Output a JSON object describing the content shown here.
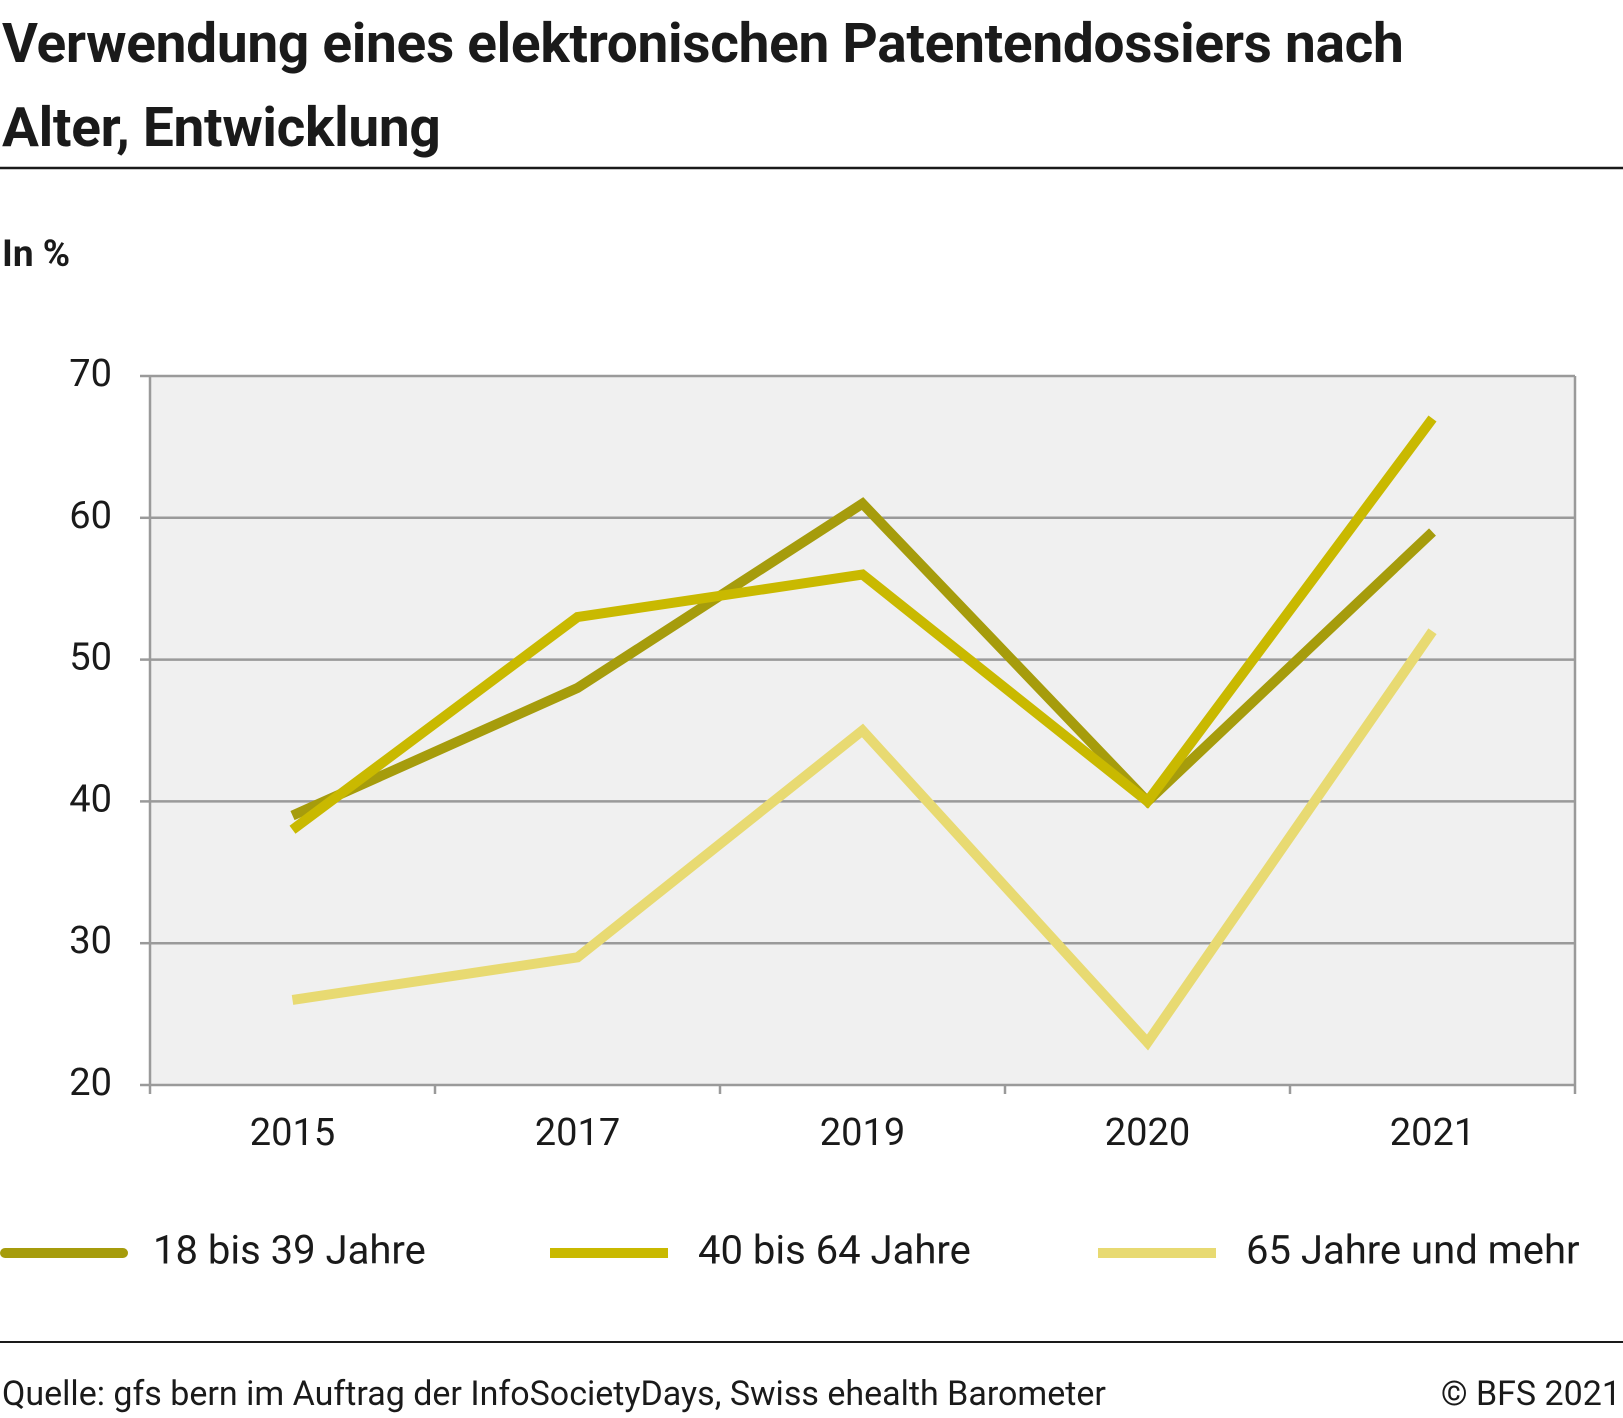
{
  "chart_data": {
    "type": "line",
    "title": "Verwendung eines elektronischen Patentendossiers nach Alter, Entwicklung",
    "y_label": "In %",
    "categories": [
      "2015",
      "2017",
      "2019",
      "2020",
      "2021"
    ],
    "series": [
      {
        "name": "18 bis 39 Jahre",
        "color": "#a69c0c",
        "values": [
          39,
          48,
          61,
          40,
          59
        ]
      },
      {
        "name": "40 bis 64 Jahre",
        "color": "#c9b900",
        "values": [
          38,
          53,
          56,
          40,
          67
        ]
      },
      {
        "name": "65 Jahre und mehr",
        "color": "#e8da72",
        "values": [
          26,
          29,
          45,
          23,
          52
        ]
      }
    ],
    "ylim": [
      20,
      70
    ],
    "yticks": [
      20,
      30,
      40,
      50,
      60,
      70
    ],
    "grid": true,
    "legend": "bottom",
    "source": "Quelle: gfs bern im Auftrag der InfoSocietyDays, Swiss ehealth Barometer",
    "copyright": "© BFS 2021"
  }
}
